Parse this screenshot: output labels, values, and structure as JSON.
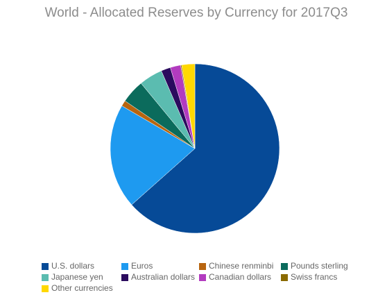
{
  "chart_data": {
    "type": "pie",
    "title": "World - Allocated Reserves by Currency for 2017Q3",
    "categories": [
      "U.S. dollars",
      "Euros",
      "Chinese renminbi",
      "Pounds sterling",
      "Japanese yen",
      "Australian dollars",
      "Canadian dollars",
      "Swiss francs",
      "Other currencies"
    ],
    "values": [
      63.5,
      20.0,
      1.1,
      4.5,
      4.5,
      1.8,
      2.0,
      0.2,
      2.5
    ],
    "colors": [
      "#064a97",
      "#1e9af0",
      "#b8650f",
      "#0b6b5c",
      "#5bbcb0",
      "#2b0b5e",
      "#b23bbf",
      "#8a6a00",
      "#ffd800"
    ]
  }
}
